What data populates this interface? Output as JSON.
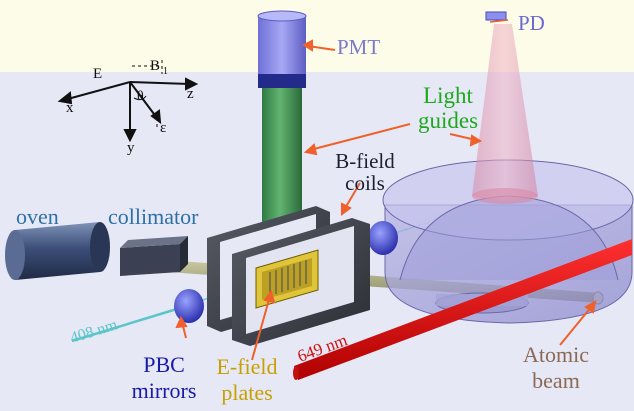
{
  "labels": {
    "pmt": "PMT",
    "pd": "PD",
    "light_guides_1": "Light",
    "light_guides_2": "guides",
    "bfield_1": "B-field",
    "bfield_2": "coils",
    "oven": "oven",
    "collimator": "collimator",
    "laser_408": "408 nm",
    "laser_649": "649 nm",
    "pbc_1": "PBC",
    "pbc_2": "mirrors",
    "efield_1": "E-field",
    "efield_2": "plates",
    "atomic_1": "Atomic",
    "atomic_2": "beam"
  },
  "axes": {
    "x": "x",
    "y": "y",
    "z": "z",
    "theta": "θ",
    "efield_vec": "E",
    "bfield_vec": "B",
    "bfield_sub": "1",
    "epsilon": "ε"
  },
  "colors": {
    "pmt_label": "#7a7acc",
    "pd_label": "#6a6ad0",
    "light_guides": "#1fa81f",
    "bfield": "#1a2030",
    "oven": "#2e6fa6",
    "collimator": "#2e6fa6",
    "laser_408": "#5ac6c9",
    "laser_649": "#d01010",
    "pbc": "#1a1aa8",
    "efield": "#c8a000",
    "atomic": "#8a6a55",
    "pointer": "#f0602a"
  }
}
